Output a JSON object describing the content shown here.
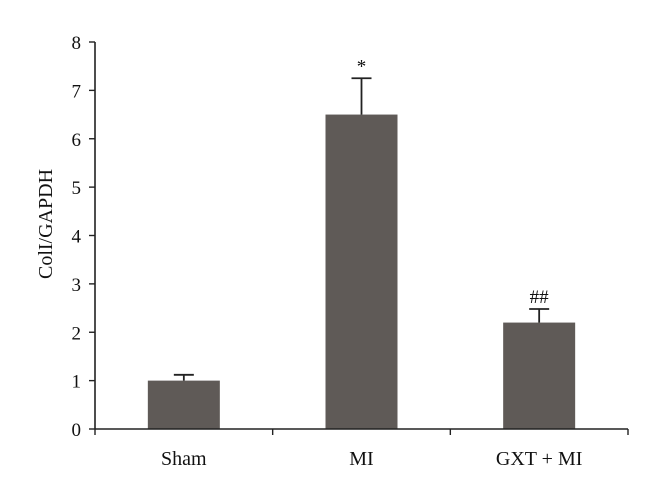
{
  "chart_data": {
    "type": "bar",
    "title": "",
    "xlabel": "",
    "ylabel": "ColI/GAPDH",
    "ylim": [
      0,
      8
    ],
    "yticks": [
      0,
      1,
      2,
      3,
      4,
      5,
      6,
      7,
      8
    ],
    "categories": [
      "Sham",
      "MI",
      "GXT + MI"
    ],
    "values": [
      1.0,
      6.5,
      2.2
    ],
    "errors": [
      0.12,
      0.75,
      0.28
    ],
    "annotations": [
      "",
      "*",
      "##"
    ],
    "bar_color": "#5f5a57",
    "grid": false,
    "legend": "none"
  }
}
